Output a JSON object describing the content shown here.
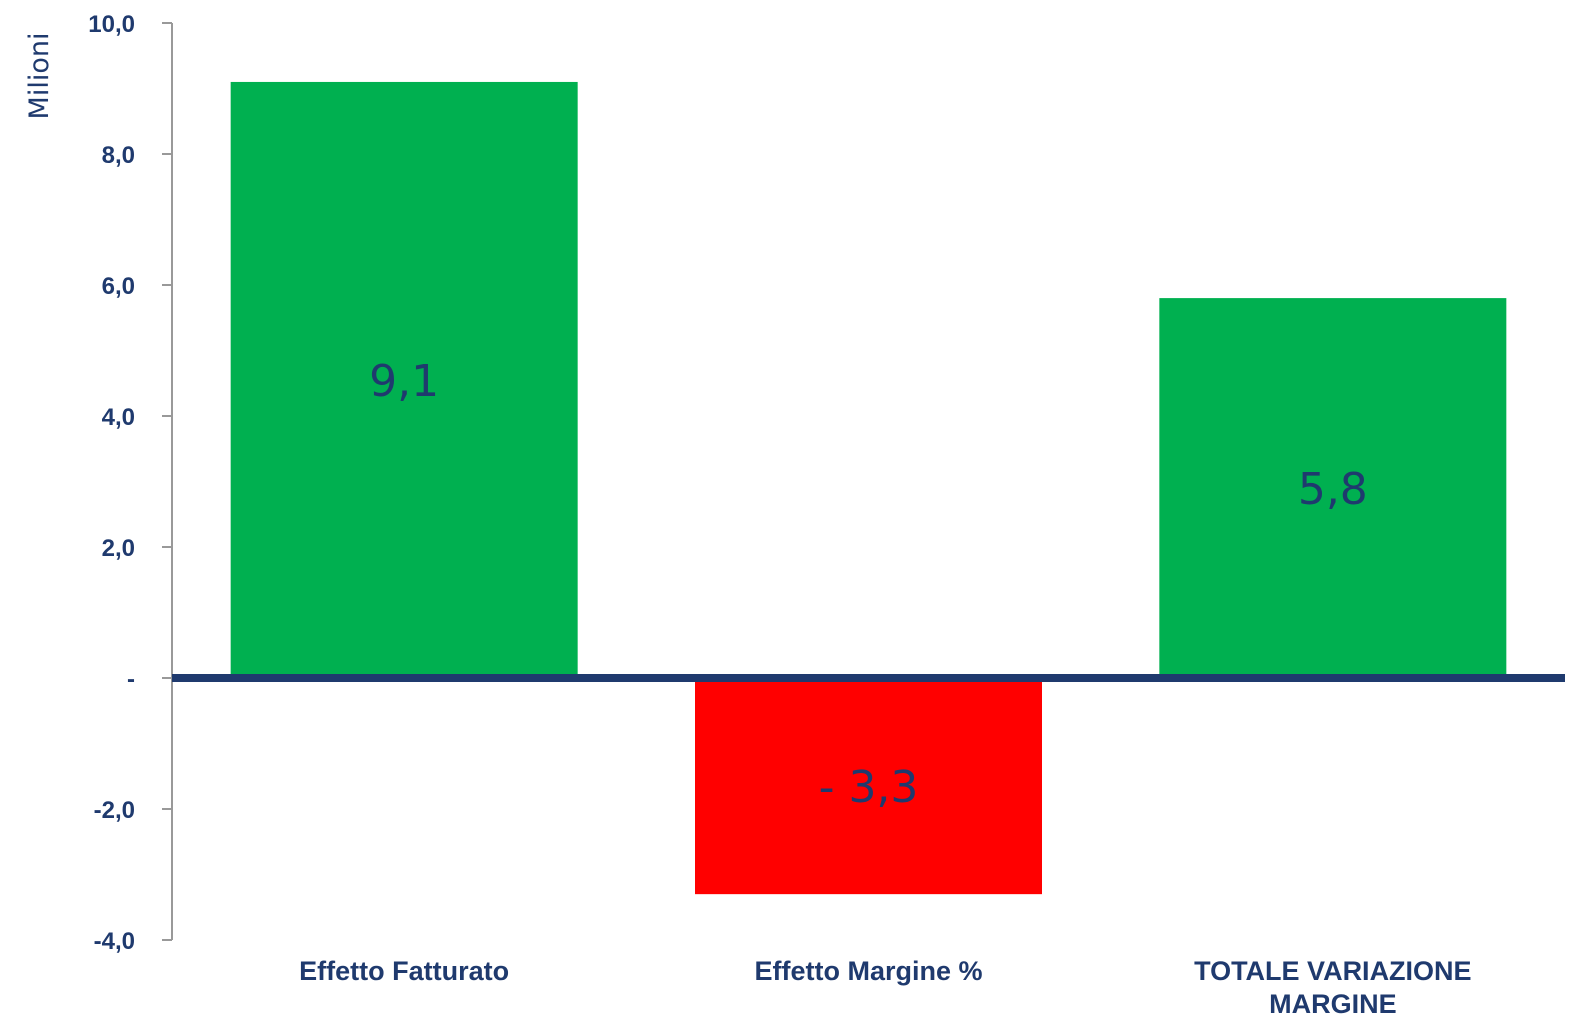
{
  "chart_data": {
    "type": "bar",
    "categories": [
      "Effetto Fatturato",
      "Effetto Margine %",
      "TOTALE VARIAZIONE MARGINE"
    ],
    "category_lines": [
      [
        "Effetto Fatturato"
      ],
      [
        "Effetto Margine %"
      ],
      [
        "TOTALE VARIAZIONE",
        "MARGINE"
      ]
    ],
    "values": [
      9.1,
      -3.3,
      5.8
    ],
    "data_labels": [
      "9,1",
      "- 3,3",
      "5,8"
    ],
    "bar_colors": [
      "#00b050",
      "#ff0000",
      "#00b050"
    ],
    "title": "",
    "xlabel": "",
    "ylabel": "Milioni",
    "ylim": [
      -4,
      10
    ],
    "yticks": [
      10,
      8,
      6,
      4,
      2,
      0,
      -2,
      -4
    ],
    "ytick_labels": [
      "10,0",
      "8,0",
      "6,0",
      "4,0",
      "2,0",
      "-",
      "-2,0",
      "-4,0"
    ],
    "grid": false,
    "legend": "none",
    "colors": {
      "text": "#1f3a6e",
      "zero_line": "#1f3a6e",
      "axis": "#999999"
    }
  }
}
